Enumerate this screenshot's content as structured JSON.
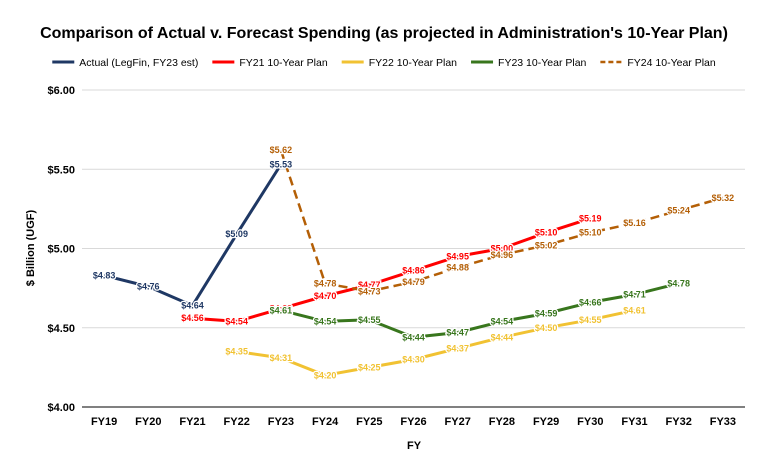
{
  "chart_data": {
    "type": "line",
    "title": "Comparison of Actual v. Forecast Spending (as projected in Administration's 10-Year Plan)",
    "xlabel": "FY",
    "ylabel": "$ Billion (UGF)",
    "ylim": [
      4.0,
      6.0
    ],
    "yticks": [
      4.0,
      4.5,
      5.0,
      5.5,
      6.0
    ],
    "ytick_labels": [
      "$4.00",
      "$4.50",
      "$5.00",
      "$5.50",
      "$6.00"
    ],
    "grid": true,
    "legend_position": "top",
    "categories": [
      "FY19",
      "FY20",
      "FY21",
      "FY22",
      "FY23",
      "FY24",
      "FY25",
      "FY26",
      "FY27",
      "FY28",
      "FY29",
      "FY30",
      "FY31",
      "FY32",
      "FY33"
    ],
    "series": [
      {
        "name": "Actual (LegFin, FY23 est)",
        "color": "#1f3864",
        "dash": "solid",
        "values": [
          4.83,
          4.76,
          4.64,
          5.09,
          5.53,
          null,
          null,
          null,
          null,
          null,
          null,
          null,
          null,
          null,
          null
        ],
        "labels": [
          "$4.83",
          "$4.76",
          "$4.64",
          "$5.09",
          "$5.53",
          null,
          null,
          null,
          null,
          null,
          null,
          null,
          null,
          null,
          null
        ]
      },
      {
        "name": "FY21 10-Year Plan",
        "color": "#ff0000",
        "dash": "solid",
        "values": [
          null,
          null,
          4.56,
          4.54,
          4.62,
          4.7,
          4.77,
          4.86,
          4.95,
          5.0,
          5.1,
          5.19,
          null,
          null,
          null
        ],
        "labels": [
          null,
          null,
          "$4.56",
          "$4.54",
          "$4.62",
          "$4.70",
          "$4.77",
          "$4.86",
          "$4.95",
          "$5.00",
          "$5.10",
          "$5.19",
          null,
          null,
          null
        ]
      },
      {
        "name": "FY22 10-Year Plan",
        "color": "#f1c232",
        "dash": "solid",
        "values": [
          null,
          null,
          null,
          4.35,
          4.31,
          4.2,
          4.25,
          4.3,
          4.37,
          4.44,
          4.5,
          4.55,
          4.61,
          null,
          null
        ],
        "labels": [
          null,
          null,
          null,
          "$4.35",
          "$4.31",
          "$4.20",
          "$4.25",
          "$4.30",
          "$4.37",
          "$4.44",
          "$4.50",
          "$4.55",
          "$4.61",
          null,
          null
        ]
      },
      {
        "name": "FY23 10-Year Plan",
        "color": "#38761d",
        "dash": "solid",
        "values": [
          null,
          null,
          null,
          null,
          4.61,
          4.54,
          4.55,
          4.44,
          4.47,
          4.54,
          4.59,
          4.66,
          4.71,
          4.78,
          null
        ],
        "labels": [
          null,
          null,
          null,
          null,
          "$4.61",
          "$4.54",
          "$4.55",
          "$4.44",
          "$4.47",
          "$4.54",
          "$4.59",
          "$4.66",
          "$4.71",
          "$4.78",
          null
        ]
      },
      {
        "name": "FY24 10-Year Plan",
        "color": "#b45f06",
        "dash": "dashed",
        "values": [
          null,
          null,
          null,
          null,
          5.62,
          4.78,
          4.73,
          4.79,
          4.88,
          4.96,
          5.02,
          5.1,
          5.16,
          5.24,
          5.32
        ],
        "labels": [
          null,
          null,
          null,
          null,
          "$5.62",
          "$4.78",
          "$4.73",
          "$4.79",
          "$4.88",
          "$4.96",
          "$5.02",
          "$5.10",
          "$5.16",
          "$5.24",
          "$5.32"
        ]
      }
    ]
  }
}
